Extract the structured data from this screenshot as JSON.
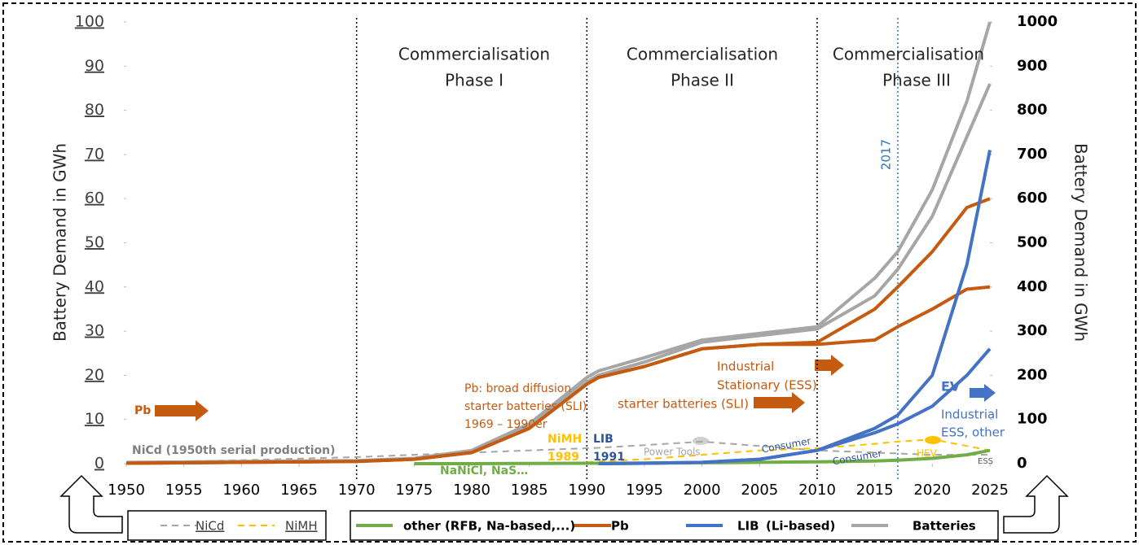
{
  "chart_data": {
    "type": "line",
    "y_label": "Battery Demand in GWh",
    "y2_label": "Battery Demand in GWh",
    "x": [
      1950,
      1960,
      1970,
      1975,
      1980,
      1985,
      1990,
      1991,
      1995,
      2000,
      2005,
      2010,
      2015,
      2017,
      2020,
      2023,
      2025
    ],
    "xlim": [
      1950,
      2025
    ],
    "xticks": [
      1950,
      1955,
      1960,
      1965,
      1970,
      1975,
      1980,
      1985,
      1990,
      1995,
      2000,
      2005,
      2010,
      2015,
      2020,
      2025
    ],
    "ylim": [
      0,
      100
    ],
    "yticks": [
      0,
      10,
      20,
      30,
      40,
      50,
      60,
      70,
      80,
      90,
      100
    ],
    "y2lim": [
      0,
      1000
    ],
    "y2ticks": [
      0,
      100,
      200,
      300,
      400,
      500,
      600,
      700,
      800,
      900,
      1000
    ],
    "phase_lines": [
      1970,
      1990,
      2010
    ],
    "highlight_year": 2017,
    "series": [
      {
        "name": "NiCd",
        "color": "#a6a6a6",
        "dash": true,
        "values": [
          0.3,
          0.8,
          1.5,
          2,
          2.5,
          3,
          3.5,
          3.6,
          4.2,
          5,
          4,
          3,
          2.5,
          2.3,
          2,
          2,
          2
        ]
      },
      {
        "name": "NiMH",
        "color": "#ffc000",
        "dash": true,
        "values": [
          null,
          null,
          null,
          null,
          null,
          null,
          0.3,
          0.5,
          1,
          2,
          3,
          3.5,
          4.5,
          5,
          5.5,
          4,
          3
        ]
      },
      {
        "name": "other (RFB, Na-based,...)",
        "color": "#70ad47",
        "values": [
          null,
          null,
          null,
          0,
          0,
          0.05,
          0.1,
          0.1,
          0.15,
          0.2,
          0.3,
          0.4,
          0.6,
          0.8,
          1.2,
          2,
          3
        ]
      },
      {
        "name": "Pb",
        "color": "#c55a11",
        "values": [
          0.1,
          0.3,
          0.5,
          1,
          2.5,
          8,
          18,
          19.5,
          22,
          26,
          27,
          27.5,
          35,
          40,
          48,
          58,
          60
        ]
      },
      {
        "name": "Pb",
        "color": "#c55a11",
        "values": [
          0.1,
          0.3,
          0.5,
          1,
          2.5,
          8,
          18,
          19.5,
          22,
          26,
          27,
          27,
          28,
          31,
          35,
          39.5,
          40
        ]
      },
      {
        "name": "LIB",
        "color": "#4472c4",
        "values": [
          null,
          null,
          null,
          null,
          null,
          null,
          null,
          0,
          0.1,
          0.3,
          1,
          3,
          8,
          11,
          20,
          45,
          71
        ]
      },
      {
        "name": "LIB",
        "color": "#4472c4",
        "values": [
          null,
          null,
          null,
          null,
          null,
          null,
          null,
          0,
          0.1,
          0.3,
          1,
          3,
          7,
          9,
          13,
          20,
          26
        ]
      },
      {
        "name": "Batteries",
        "color": "#a6a6a6",
        "values": [
          0.3,
          0.5,
          0.7,
          1.2,
          3,
          9,
          19.5,
          21,
          24,
          28,
          29.5,
          31,
          42,
          48,
          62,
          82,
          100
        ]
      },
      {
        "name": "Batteries",
        "color": "#a6a6a6",
        "values": [
          0.2,
          0.4,
          0.6,
          1.1,
          2.8,
          8.5,
          18.5,
          20,
          23,
          27.5,
          29,
          30.5,
          38,
          44,
          56,
          74,
          86
        ]
      }
    ],
    "legend_extra": "(Li-based)",
    "annotations": [
      {
        "text": "Commercialisation",
        "color": "#262626"
      },
      {
        "text": "Phase I",
        "color": "#262626"
      },
      {
        "text": "Commercialisation",
        "color": "#262626"
      },
      {
        "text": "Phase II",
        "color": "#262626"
      },
      {
        "text": "Commercialisation",
        "color": "#262626"
      },
      {
        "text": "Phase III",
        "color": "#262626"
      },
      {
        "text": "Pb",
        "color": "#c55a11"
      },
      {
        "text": "NiCd (1950th serial production)",
        "color": "#808080"
      },
      {
        "text": "Pb: broad diffusion",
        "color": "#c55a11"
      },
      {
        "text": "starter batteries (SLI)",
        "color": "#c55a11"
      },
      {
        "text": "1969 – 1990er",
        "color": "#c55a11"
      },
      {
        "text": "NiMH",
        "color": "#ffc000"
      },
      {
        "text": "1989",
        "color": "#ffc000"
      },
      {
        "text": "LIB",
        "color": "#2f5597"
      },
      {
        "text": "1991",
        "color": "#2f5597"
      },
      {
        "text": "NaNiCl, NaS…",
        "color": "#70ad47"
      },
      {
        "text": "Power Tools",
        "color": "#a6a6a6"
      },
      {
        "text": "Consumer",
        "color": "#2f5597"
      },
      {
        "text": "Consumer",
        "color": "#2f5597"
      },
      {
        "text": "HEV",
        "color": "#ffc000"
      },
      {
        "text": "ESS",
        "color": "#595959"
      },
      {
        "text": "Industrial",
        "color": "#c55a11"
      },
      {
        "text": "Stationary (ESS)",
        "color": "#c55a11"
      },
      {
        "text": "starter batteries (SLI)",
        "color": "#c55a11"
      },
      {
        "text": "EV",
        "color": "#4472c4"
      },
      {
        "text": "Industrial",
        "color": "#4472c4"
      },
      {
        "text": "ESS, other",
        "color": "#4472c4"
      }
    ]
  }
}
